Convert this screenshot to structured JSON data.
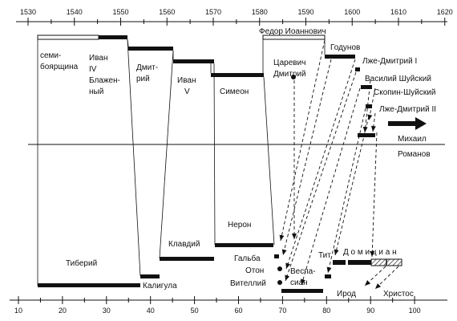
{
  "top_axis": {
    "ticks": [
      "1530",
      "1540",
      "1550",
      "1560",
      "1570",
      "1580",
      "1590",
      "1600",
      "1610",
      "1620"
    ]
  },
  "bottom_axis": {
    "ticks": [
      "10",
      "20",
      "30",
      "40",
      "50",
      "60",
      "70",
      "80",
      "90",
      "100"
    ]
  },
  "top_labels": {
    "semiboyarshchina_1": "семи-",
    "semiboyarshchina_2": "боярщина",
    "ivan_iv_1": "Иван",
    "ivan_iv_2": "IV",
    "ivan_iv_3": "Блажен-",
    "ivan_iv_4": "ный",
    "dmitry_1": "Дмит-",
    "dmitry_2": "рий",
    "ivan_v_1": "Иван",
    "ivan_v_2": "V",
    "simeon": "Симеон",
    "fedor": "Федор Иоаннович",
    "tsarevich_1": "Царевич",
    "tsarevich_2": "Дмитрий",
    "godunov": "Годунов",
    "false_dmitry_1": "Лже-Дмитрий I",
    "shuisky": "Василий Шуйский",
    "skopin": "Скопин-Шуйский",
    "false_dmitry_2": "Лже-Дмитрий II",
    "mikhail": "Михаил",
    "romanov": "Романов"
  },
  "bottom_labels": {
    "tiberius": "Тиберий",
    "caligula": "Калигула",
    "claudius": "Клавдий",
    "nero": "Нерон",
    "galba": "Гальба",
    "otho": "Отон",
    "vitellius": "Вителлий",
    "vespasian_1": "Веспа-",
    "vespasian_2": "сиан",
    "titus": "Тит",
    "domitian": "Д о м и ц и а н",
    "herod": "Ирод",
    "christ": "Христос"
  }
}
